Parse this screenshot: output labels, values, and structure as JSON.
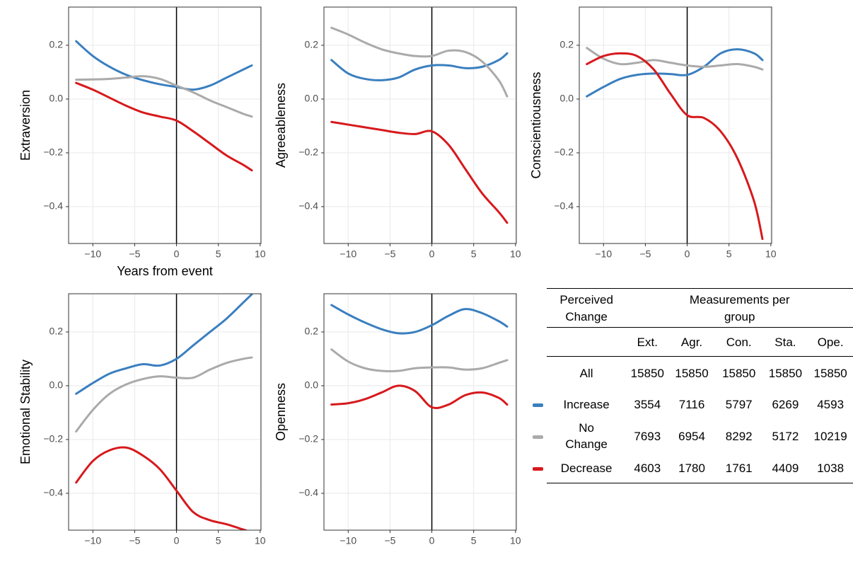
{
  "chart_data": [
    {
      "type": "line",
      "ylabel": "Extraversion",
      "xlabel": "Years from event",
      "x": [
        -12,
        -10,
        -8,
        -6,
        -4,
        -2,
        0,
        2,
        4,
        6,
        8,
        9
      ],
      "series": [
        {
          "color": "#3a7fbf",
          "values": [
            0.215,
            0.16,
            0.12,
            0.09,
            0.07,
            0.055,
            0.045,
            0.035,
            0.05,
            0.08,
            0.11,
            0.125
          ]
        },
        {
          "color": "#aaaaaa",
          "values": [
            0.072,
            0.073,
            0.075,
            0.08,
            0.085,
            0.075,
            0.05,
            0.025,
            -0.005,
            -0.03,
            -0.055,
            -0.065
          ]
        },
        {
          "color": "#d7191c",
          "values": [
            0.06,
            0.035,
            0.005,
            -0.025,
            -0.05,
            -0.065,
            -0.08,
            -0.12,
            -0.165,
            -0.21,
            -0.245,
            -0.265
          ]
        }
      ],
      "xlim": [
        -12.9,
        10.1
      ],
      "ylim": [
        -0.537,
        0.342
      ],
      "xticks": [
        {
          "value": -10,
          "label": "−10"
        },
        {
          "value": -5,
          "label": "−5"
        },
        0,
        5,
        10
      ],
      "yticks": [
        {
          "value": -0.4,
          "label": "−0.4"
        },
        {
          "value": -0.2,
          "label": "−0.2"
        },
        {
          "value": 0,
          "label": "0.0"
        },
        0.2
      ],
      "vline": 0,
      "grid": true
    },
    {
      "type": "line",
      "ylabel": "Agreeableness",
      "x": [
        -12,
        -10,
        -8,
        -6,
        -4,
        -2,
        0,
        2,
        4,
        6,
        8,
        9
      ],
      "series": [
        {
          "color": "#3a7fbf",
          "values": [
            0.145,
            0.095,
            0.075,
            0.07,
            0.08,
            0.11,
            0.125,
            0.125,
            0.115,
            0.12,
            0.145,
            0.17
          ]
        },
        {
          "color": "#aaaaaa",
          "values": [
            0.265,
            0.24,
            0.21,
            0.185,
            0.17,
            0.16,
            0.16,
            0.18,
            0.175,
            0.14,
            0.07,
            0.01
          ]
        },
        {
          "color": "#d7191c",
          "values": [
            -0.085,
            -0.095,
            -0.105,
            -0.115,
            -0.125,
            -0.13,
            -0.12,
            -0.17,
            -0.26,
            -0.35,
            -0.42,
            -0.46
          ]
        }
      ],
      "xlim": [
        -12.9,
        10.1
      ],
      "ylim": [
        -0.537,
        0.342
      ],
      "xticks": [
        {
          "value": -10,
          "label": "−10"
        },
        {
          "value": -5,
          "label": "−5"
        },
        0,
        5,
        10
      ],
      "yticks": [
        {
          "value": -0.4,
          "label": "−0.4"
        },
        {
          "value": -0.2,
          "label": "−0.2"
        },
        {
          "value": 0,
          "label": "0.0"
        },
        0.2
      ],
      "vline": 0,
      "grid": true
    },
    {
      "type": "line",
      "ylabel": "Conscientiousness",
      "x": [
        -12,
        -10,
        -8,
        -6,
        -4,
        -2,
        0,
        2,
        4,
        6,
        8,
        9
      ],
      "series": [
        {
          "color": "#3a7fbf",
          "values": [
            0.01,
            0.045,
            0.075,
            0.09,
            0.095,
            0.093,
            0.09,
            0.12,
            0.17,
            0.185,
            0.17,
            0.145
          ]
        },
        {
          "color": "#aaaaaa",
          "values": [
            0.19,
            0.15,
            0.13,
            0.135,
            0.145,
            0.135,
            0.125,
            0.12,
            0.125,
            0.13,
            0.12,
            0.11
          ]
        },
        {
          "color": "#d7191c",
          "values": [
            0.13,
            0.16,
            0.17,
            0.16,
            0.11,
            0.02,
            -0.06,
            -0.07,
            -0.12,
            -0.22,
            -0.38,
            -0.52
          ]
        }
      ],
      "xlim": [
        -12.9,
        10.1
      ],
      "ylim": [
        -0.537,
        0.342
      ],
      "xticks": [
        {
          "value": -10,
          "label": "−10"
        },
        {
          "value": -5,
          "label": "−5"
        },
        0,
        5,
        10
      ],
      "yticks": [
        {
          "value": -0.4,
          "label": "−0.4"
        },
        {
          "value": -0.2,
          "label": "−0.2"
        },
        {
          "value": 0,
          "label": "0.0"
        },
        0.2
      ],
      "vline": 0,
      "grid": true
    },
    {
      "type": "line",
      "ylabel": "Emotional Stability",
      "x": [
        -12,
        -10,
        -8,
        -6,
        -4,
        -2,
        0,
        2,
        4,
        6,
        8,
        9
      ],
      "series": [
        {
          "color": "#3a7fbf",
          "values": [
            -0.03,
            0.01,
            0.045,
            0.065,
            0.08,
            0.075,
            0.1,
            0.15,
            0.2,
            0.25,
            0.31,
            0.34
          ]
        },
        {
          "color": "#aaaaaa",
          "values": [
            -0.17,
            -0.09,
            -0.03,
            0.005,
            0.025,
            0.035,
            0.03,
            0.03,
            0.06,
            0.085,
            0.1,
            0.105
          ]
        },
        {
          "color": "#d7191c",
          "values": [
            -0.36,
            -0.28,
            -0.24,
            -0.23,
            -0.26,
            -0.31,
            -0.39,
            -0.47,
            -0.5,
            -0.515,
            -0.535,
            -0.545
          ]
        }
      ],
      "xlim": [
        -12.9,
        10.1
      ],
      "ylim": [
        -0.537,
        0.342
      ],
      "xticks": [
        {
          "value": -10,
          "label": "−10"
        },
        {
          "value": -5,
          "label": "−5"
        },
        0,
        5,
        10
      ],
      "yticks": [
        {
          "value": -0.4,
          "label": "−0.4"
        },
        {
          "value": -0.2,
          "label": "−0.2"
        },
        {
          "value": 0,
          "label": "0.0"
        },
        0.2
      ],
      "vline": 0,
      "grid": true
    },
    {
      "type": "line",
      "ylabel": "Openness",
      "x": [
        -12,
        -10,
        -8,
        -6,
        -4,
        -2,
        0,
        2,
        4,
        6,
        8,
        9
      ],
      "series": [
        {
          "color": "#3a7fbf",
          "values": [
            0.3,
            0.265,
            0.235,
            0.21,
            0.195,
            0.2,
            0.225,
            0.26,
            0.285,
            0.27,
            0.24,
            0.22
          ]
        },
        {
          "color": "#aaaaaa",
          "values": [
            0.135,
            0.09,
            0.065,
            0.055,
            0.055,
            0.065,
            0.068,
            0.068,
            0.06,
            0.065,
            0.085,
            0.095
          ]
        },
        {
          "color": "#d7191c",
          "values": [
            -0.07,
            -0.065,
            -0.05,
            -0.025,
            0.0,
            -0.02,
            -0.08,
            -0.07,
            -0.035,
            -0.025,
            -0.045,
            -0.07
          ]
        }
      ],
      "xlim": [
        -12.9,
        10.1
      ],
      "ylim": [
        -0.537,
        0.342
      ],
      "xticks": [
        {
          "value": -10,
          "label": "−10"
        },
        {
          "value": -5,
          "label": "−5"
        },
        0,
        5,
        10
      ],
      "yticks": [
        {
          "value": -0.4,
          "label": "−0.4"
        },
        {
          "value": -0.2,
          "label": "−0.2"
        },
        {
          "value": 0,
          "label": "0.0"
        },
        0.2
      ],
      "vline": 0,
      "grid": true
    }
  ],
  "table": {
    "group_header": "Perceived Change",
    "measure_header": "Measurements per group",
    "columns": [
      "Ext.",
      "Agr.",
      "Con.",
      "Sta.",
      "Ope."
    ],
    "rows": [
      {
        "label": "All",
        "values": [
          15850,
          15850,
          15850,
          15850,
          15850
        ]
      },
      {
        "label": "Increase",
        "values": [
          3554,
          7116,
          5797,
          6269,
          4593
        ]
      },
      {
        "label": "No Change",
        "values": [
          7693,
          6954,
          8292,
          5172,
          10219
        ]
      },
      {
        "label": "Decrease",
        "values": [
          4603,
          1780,
          1761,
          4409,
          1038
        ]
      }
    ]
  }
}
